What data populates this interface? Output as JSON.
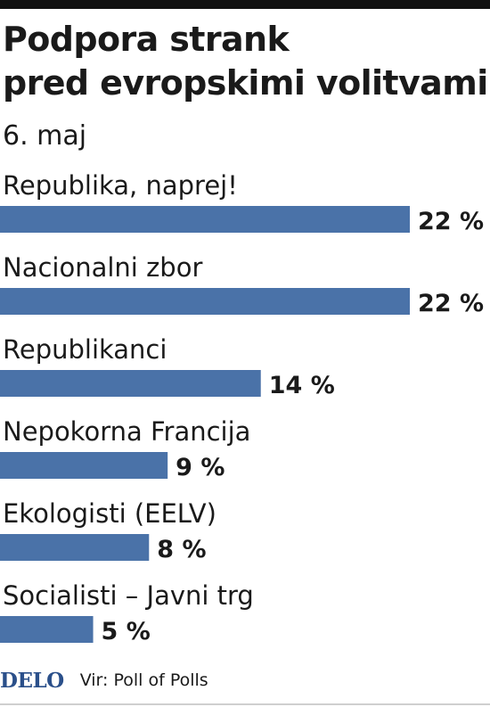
{
  "header": {
    "title_line1": "Podpora strank",
    "title_line2": "pred evropskimi volitvami",
    "subtitle": "6. maj"
  },
  "footer": {
    "logo": "DELO",
    "source": "Vir: Poll of Polls"
  },
  "colors": {
    "bar": "#4a72a8",
    "text": "#1a1a1a",
    "logo": "#2a4f8a"
  },
  "chart_data": {
    "type": "bar",
    "orientation": "horizontal",
    "title": "Podpora strank pred evropskimi volitvami",
    "subtitle": "6. maj",
    "categories": [
      "Republika, naprej!",
      "Nacionalni zbor",
      "Republikanci",
      "Nepokorna Francija",
      "Ekologisti (EELV)",
      "Socialisti – Javni trg"
    ],
    "values": [
      22,
      22,
      14,
      9,
      8,
      5
    ],
    "value_labels": [
      "22 %",
      "22 %",
      "14 %",
      "9 %",
      "8 %",
      "5 %"
    ],
    "unit": "%",
    "xlim": [
      0,
      22
    ],
    "grid": false,
    "legend": "none",
    "source": "Vir: Poll of Polls"
  }
}
